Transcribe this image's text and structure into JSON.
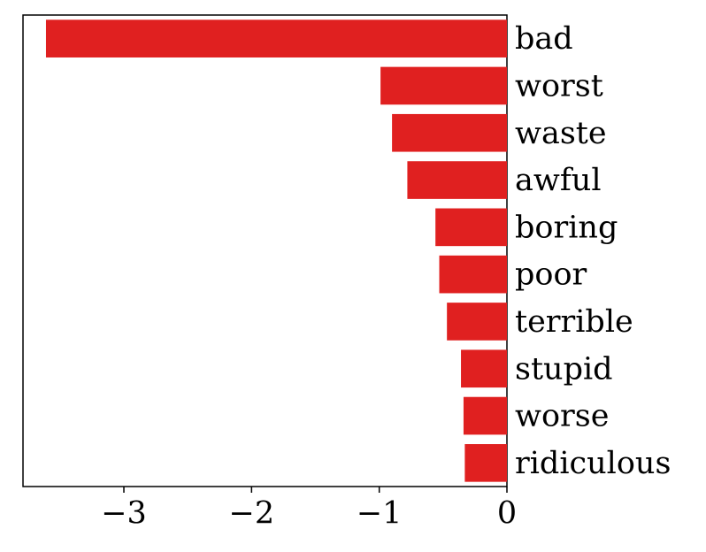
{
  "chart_data": {
    "type": "barh",
    "categories": [
      "bad",
      "worst",
      "waste",
      "awful",
      "boring",
      "poor",
      "terrible",
      "stupid",
      "worse",
      "ridiculous"
    ],
    "values": [
      -3.61,
      -0.99,
      -0.9,
      -0.78,
      -0.56,
      -0.53,
      -0.47,
      -0.36,
      -0.34,
      -0.33
    ],
    "color": "#e02020",
    "xlim": [
      -3.79,
      0
    ],
    "xticks": [
      {
        "value": -3,
        "label": "−3"
      },
      {
        "value": -2,
        "label": "−2"
      },
      {
        "value": -1,
        "label": "−1"
      },
      0
    ]
  }
}
